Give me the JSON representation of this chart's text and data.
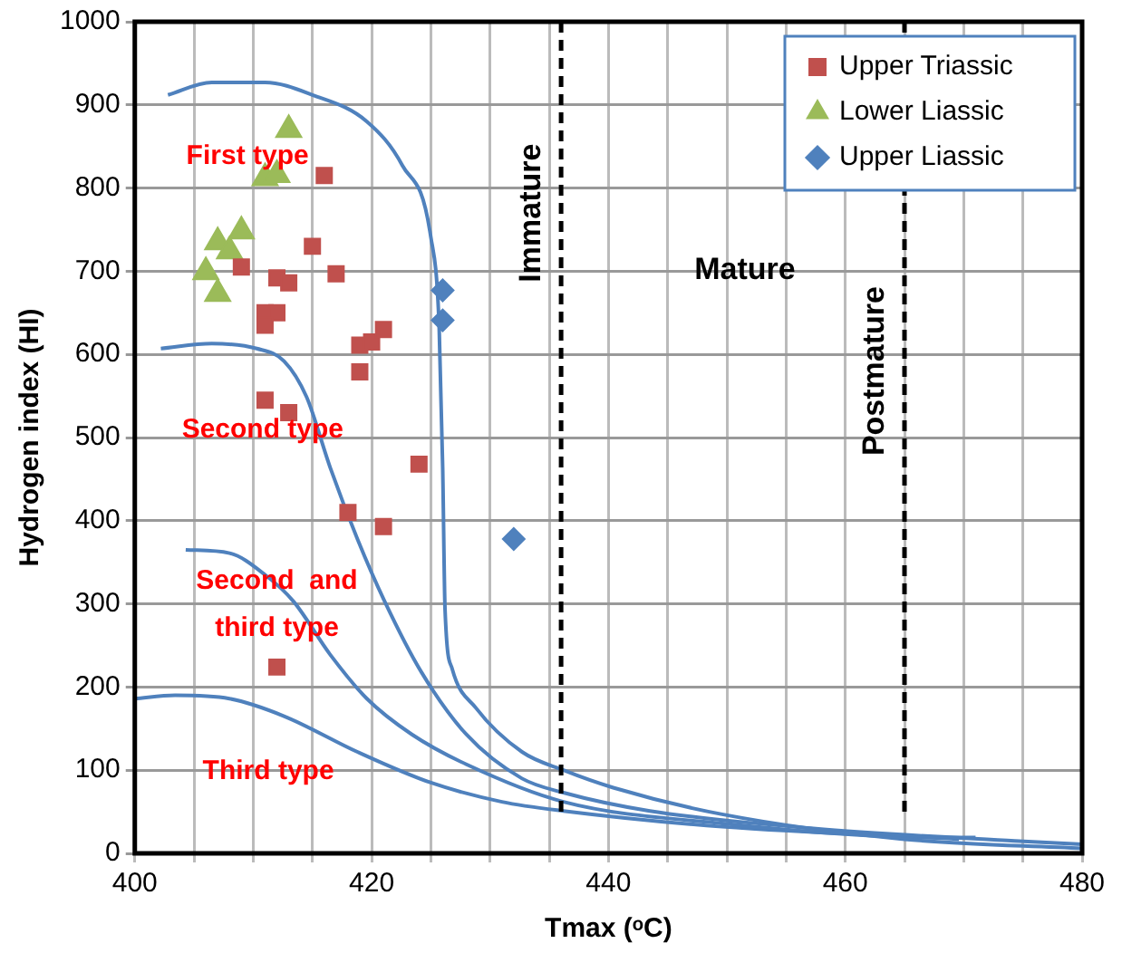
{
  "chart_data": {
    "type": "scatter",
    "xlabel": "Tmax (ᵒC)",
    "ylabel": "Hydrogen index (HI)",
    "xlim": [
      400,
      480
    ],
    "ylim": [
      0,
      1000
    ],
    "xticks": [
      400,
      {
        "value": 405,
        "label": null
      },
      {
        "value": 410,
        "label": null
      },
      {
        "value": 415,
        "label": null
      },
      420,
      {
        "value": 425,
        "label": null
      },
      {
        "value": 430,
        "label": null
      },
      {
        "value": 435,
        "label": null
      },
      440,
      {
        "value": 445,
        "label": null
      },
      {
        "value": 450,
        "label": null
      },
      {
        "value": 455,
        "label": null
      },
      460,
      {
        "value": 465,
        "label": null
      },
      {
        "value": 470,
        "label": null
      },
      {
        "value": 475,
        "label": null
      },
      480
    ],
    "yticks": [
      0,
      100,
      200,
      300,
      400,
      500,
      600,
      700,
      800,
      900,
      1000
    ],
    "grid": true,
    "legend": "top right",
    "series": [
      {
        "name": "Upper Triassic",
        "color": "#c0504d",
        "marker": "square",
        "x": [
          416,
          415,
          417,
          409,
          412,
          413,
          411,
          412,
          411,
          419,
          420,
          421,
          419,
          411,
          413,
          424,
          418,
          421,
          412
        ],
        "values": [
          815,
          730,
          697,
          705,
          692,
          686,
          650,
          650,
          635,
          611,
          615,
          630,
          579,
          545,
          530,
          468,
          410,
          393,
          224
        ]
      },
      {
        "name": "Lower Liassic",
        "color": "#9bbb59",
        "marker": "triangle",
        "x": [
          413,
          411,
          412,
          409,
          407,
          408,
          406,
          407
        ],
        "values": [
          870,
          812,
          816,
          748,
          735,
          724,
          699,
          673
        ]
      },
      {
        "name": "Upper Liassic",
        "color": "#4f81bd",
        "marker": "diamond",
        "x": [
          426,
          426,
          432
        ],
        "values": [
          677,
          641,
          378
        ]
      },
      {
        "type": "line",
        "color": "#4f81bd",
        "marker": "none",
        "x": [
          402.8,
          406.5,
          411,
          415,
          419.6,
          422.6,
          425,
          425.7,
          426,
          426.2,
          426.8,
          428.8,
          432.7,
          436.2,
          440.4,
          449.6,
          465,
          480
        ],
        "values": [
          912,
          927,
          927,
          912,
          880,
          827,
          741,
          634,
          464,
          293,
          222,
          175,
          122,
          100,
          79,
          47,
          17,
          6
        ]
      },
      {
        "type": "line",
        "color": "#4f81bd",
        "marker": "none",
        "x": [
          402.2,
          406.5,
          410.3,
          412.6,
          414.5,
          416.5,
          418.8,
          421.1,
          424.2,
          428,
          432.7,
          436.2,
          443.5,
          457.3,
          474.3,
          480
        ],
        "values": [
          607,
          613,
          607,
          592,
          549,
          464,
          378,
          303,
          218,
          143,
          90,
          73,
          51,
          30,
          15,
          11
        ]
      },
      {
        "type": "line",
        "color": "#4f81bd",
        "marker": "none",
        "x": [
          404.3,
          408,
          411,
          413.4,
          416.5,
          419.6,
          423.4,
          428,
          436.2,
          449.6,
          468,
          471
        ],
        "values": [
          365,
          361,
          335,
          303,
          239,
          186,
          143,
          107,
          62,
          36,
          19,
          19
        ]
      },
      {
        "type": "line",
        "color": "#4f81bd",
        "marker": "none",
        "x": [
          400,
          403.4,
          408,
          412.6,
          418.8,
          425,
          431,
          436.2,
          449.6,
          469.6
        ],
        "values": [
          186,
          190,
          186,
          165,
          122,
          85,
          62,
          51,
          32,
          17
        ]
      }
    ],
    "ref_lines": [
      {
        "axis": "x",
        "value": 436,
        "label": "Immature",
        "color": "#000000",
        "line_style": "dashed"
      },
      {
        "axis": "x",
        "value": 465,
        "label": "Postmature",
        "color": "#000000",
        "line_style": "dashed"
      }
    ],
    "annotations": [
      "First type",
      "Second type",
      "Second  and\nthird type",
      "Third type",
      "Mature"
    ]
  }
}
